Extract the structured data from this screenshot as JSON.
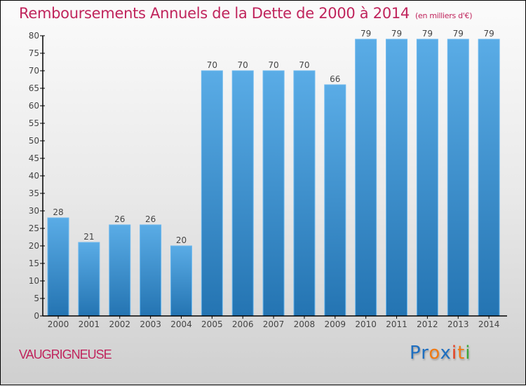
{
  "chart_data": {
    "type": "bar",
    "title": "Remboursements Annuels de la Dette de 2000 à 2014",
    "unit_note": "(en milliers d'€)",
    "categories": [
      "2000",
      "2001",
      "2002",
      "2003",
      "2004",
      "2005",
      "2006",
      "2007",
      "2008",
      "2009",
      "2010",
      "2011",
      "2012",
      "2013",
      "2014"
    ],
    "values": [
      28,
      21,
      26,
      26,
      20,
      70,
      70,
      70,
      70,
      66,
      79,
      79,
      79,
      79,
      79
    ],
    "xlabel": "",
    "ylabel": "",
    "ylim": [
      0,
      80
    ],
    "yticks": [
      0,
      5,
      10,
      15,
      20,
      25,
      30,
      35,
      40,
      45,
      50,
      55,
      60,
      65,
      70,
      75,
      80
    ],
    "grid": false,
    "legend": "none",
    "bar_color_top": "#5aace6",
    "bar_color_bottom": "#2474b2"
  },
  "footer": {
    "town": "VAUGRIGNEUSE",
    "logo": [
      "P",
      "r",
      "o",
      "x",
      "i",
      "t",
      "i"
    ]
  },
  "colors": {
    "title": "#c0245c",
    "logo": [
      "#1f6fc0",
      "#1f6fc0",
      "#f07a14",
      "#1f6fc0",
      "#e83c1c",
      "#f07a14",
      "#3aa838"
    ]
  }
}
